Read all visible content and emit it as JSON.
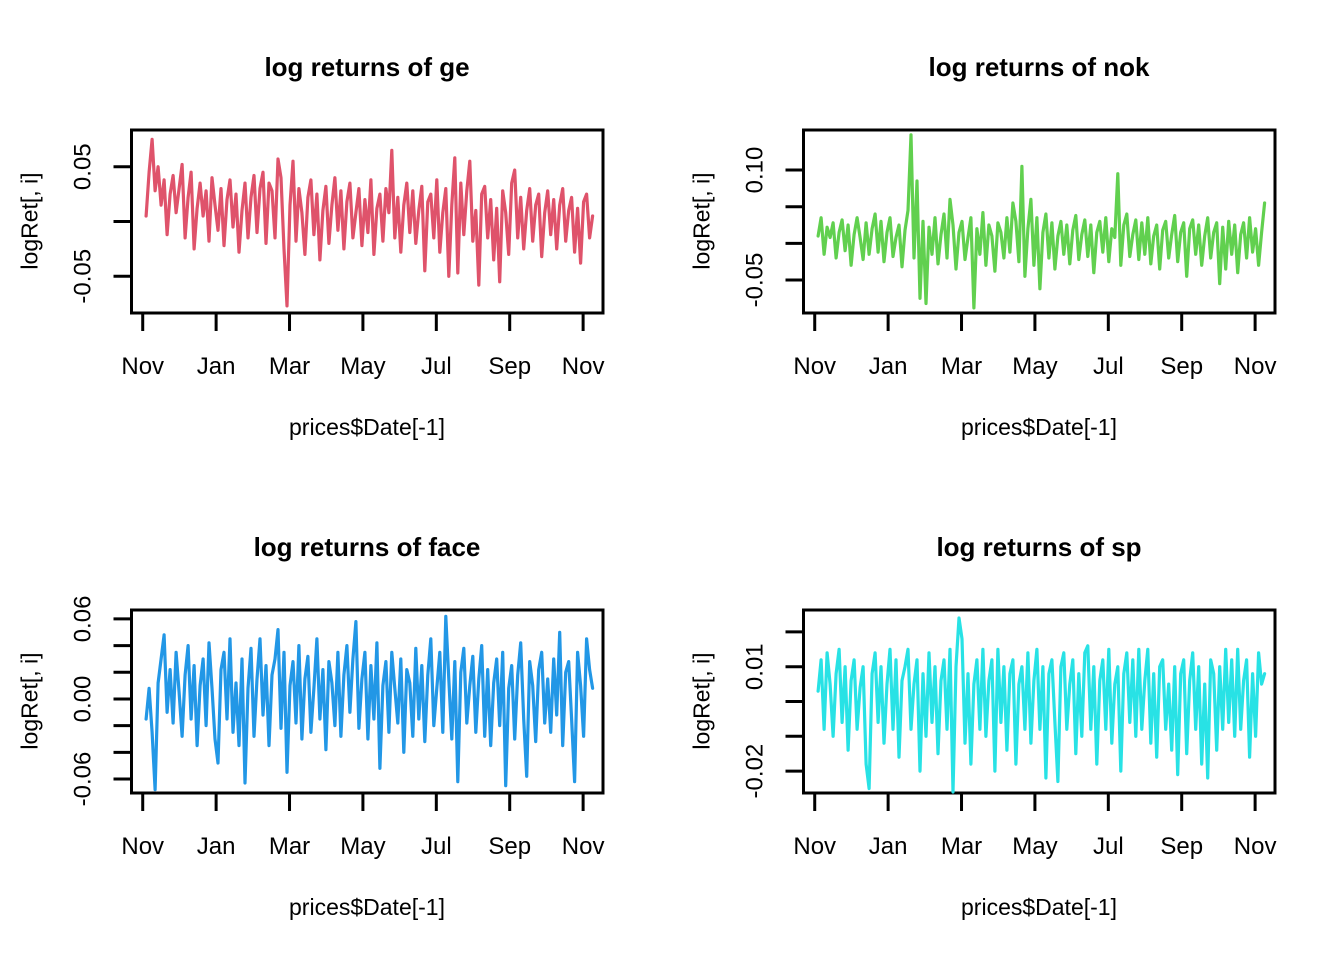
{
  "figure": {
    "background": "#ffffff",
    "description": "2x2 grid of R base-graphics line plots of daily log returns",
    "axis_color": "#000000"
  },
  "chart_data": [
    {
      "type": "line",
      "title": "log returns of ge",
      "xlabel": "prices$Date[-1]",
      "ylabel": "logRet[, i]",
      "series_name": "ge",
      "color": "#DF536B",
      "x_tick_labels": [
        "Nov",
        "Jan",
        "Mar",
        "May",
        "Jul",
        "Sep",
        "Nov"
      ],
      "y_ticks": [
        {
          "value": 0.05,
          "label": "0.05"
        },
        {
          "value": 0.0,
          "label": ""
        },
        {
          "value": -0.05,
          "label": "-0.05"
        }
      ],
      "ylim": [
        -0.0835,
        0.0835
      ],
      "value_scale": 0.001,
      "values_x1000": [
        5,
        45,
        75,
        28,
        50,
        15,
        38,
        -12,
        25,
        42,
        8,
        30,
        52,
        -15,
        22,
        45,
        -25,
        12,
        35,
        5,
        28,
        -18,
        40,
        15,
        -8,
        30,
        -22,
        20,
        38,
        -5,
        25,
        -28,
        10,
        35,
        -15,
        22,
        42,
        -10,
        30,
        45,
        -20,
        35,
        28,
        -15,
        57,
        40,
        -25,
        -77,
        15,
        55,
        -18,
        30,
        8,
        -30,
        22,
        38,
        -12,
        25,
        -35,
        10,
        32,
        -20,
        15,
        40,
        -8,
        28,
        -25,
        18,
        35,
        -15,
        8,
        30,
        -22,
        20,
        -10,
        38,
        -30,
        12,
        25,
        -18,
        30,
        8,
        65,
        -15,
        22,
        -28,
        15,
        35,
        -10,
        28,
        -20,
        10,
        32,
        -45,
        18,
        25,
        -15,
        38,
        -28,
        8,
        30,
        -50,
        15,
        58,
        -47,
        35,
        -12,
        28,
        55,
        -18,
        10,
        -58,
        25,
        32,
        -15,
        20,
        -35,
        12,
        -55,
        28,
        8,
        -30,
        35,
        47,
        -15,
        22,
        -25,
        10,
        30,
        -18,
        15,
        25,
        -32,
        8,
        28,
        -12,
        20,
        -25,
        15,
        30,
        -18,
        10,
        22,
        -28,
        12,
        -38,
        18,
        25,
        -15,
        5
      ]
    },
    {
      "type": "line",
      "title": "log returns of nok",
      "xlabel": "prices$Date[-1]",
      "ylabel": "logRet[, i]",
      "series_name": "nok",
      "color": "#61D04F",
      "x_tick_labels": [
        "Nov",
        "Jan",
        "Mar",
        "May",
        "Jul",
        "Sep",
        "Nov"
      ],
      "y_ticks": [
        {
          "value": 0.1,
          "label": "0.10"
        },
        {
          "value": 0.05,
          "label": ""
        },
        {
          "value": 0.0,
          "label": ""
        },
        {
          "value": -0.05,
          "label": "-0.05"
        }
      ],
      "ylim": [
        -0.095,
        0.1546
      ],
      "value_scale": 0.001,
      "values_x1000": [
        10,
        35,
        -15,
        22,
        8,
        28,
        -20,
        15,
        32,
        -10,
        25,
        -30,
        12,
        35,
        8,
        -22,
        28,
        -15,
        20,
        40,
        -12,
        30,
        -25,
        15,
        35,
        -18,
        8,
        25,
        -32,
        18,
        45,
        148,
        -20,
        85,
        -75,
        30,
        -82,
        22,
        -15,
        35,
        -28,
        12,
        40,
        -20,
        60,
        25,
        -35,
        15,
        30,
        -22,
        8,
        35,
        -88,
        20,
        -15,
        42,
        -30,
        25,
        10,
        -38,
        28,
        15,
        -20,
        35,
        -12,
        55,
        30,
        -25,
        105,
        -45,
        20,
        60,
        -30,
        35,
        -62,
        15,
        40,
        -20,
        28,
        -35,
        10,
        30,
        -15,
        25,
        -28,
        18,
        38,
        -22,
        12,
        32,
        -18,
        25,
        -40,
        15,
        30,
        -12,
        35,
        -25,
        20,
        8,
        95,
        -30,
        25,
        40,
        -18,
        12,
        32,
        -22,
        28,
        -15,
        35,
        -28,
        10,
        25,
        -35,
        18,
        30,
        -20,
        12,
        38,
        -25,
        15,
        28,
        -45,
        20,
        32,
        -15,
        25,
        -30,
        10,
        35,
        -20,
        15,
        28,
        -55,
        22,
        -35,
        30,
        -15,
        25,
        -40,
        12,
        28,
        -20,
        35,
        -12,
        20,
        -30,
        15,
        55
      ]
    },
    {
      "type": "line",
      "title": "log returns of face",
      "xlabel": "prices$Date[-1]",
      "ylabel": "logRet[, i]",
      "series_name": "face",
      "color": "#2297E6",
      "x_tick_labels": [
        "Nov",
        "Jan",
        "Mar",
        "May",
        "Jul",
        "Sep",
        "Nov"
      ],
      "y_ticks": [
        {
          "value": 0.06,
          "label": "0.06"
        },
        {
          "value": 0.04,
          "label": ""
        },
        {
          "value": 0.02,
          "label": ""
        },
        {
          "value": 0.0,
          "label": "0.00"
        },
        {
          "value": -0.02,
          "label": ""
        },
        {
          "value": -0.04,
          "label": ""
        },
        {
          "value": -0.06,
          "label": "-0.06"
        }
      ],
      "ylim": [
        -0.0705,
        0.0667
      ],
      "value_scale": 0.001,
      "values_x1000": [
        -15,
        8,
        -25,
        -68,
        12,
        30,
        48,
        -10,
        22,
        -18,
        35,
        5,
        -28,
        18,
        40,
        -15,
        25,
        -35,
        10,
        30,
        -20,
        42,
        8,
        -30,
        -48,
        22,
        35,
        -15,
        45,
        -25,
        12,
        -35,
        30,
        -63,
        8,
        38,
        -28,
        15,
        45,
        -12,
        25,
        -35,
        18,
        30,
        52,
        -22,
        35,
        -55,
        10,
        28,
        -18,
        40,
        -30,
        15,
        32,
        -25,
        8,
        45,
        -15,
        22,
        -38,
        28,
        12,
        -20,
        35,
        -28,
        18,
        40,
        -10,
        30,
        58,
        -22,
        15,
        35,
        -30,
        25,
        -15,
        42,
        -52,
        10,
        28,
        -25,
        35,
        8,
        -18,
        30,
        -40,
        22,
        12,
        -28,
        38,
        -15,
        25,
        -32,
        18,
        45,
        -20,
        8,
        35,
        -25,
        62,
        15,
        -30,
        28,
        -62,
        20,
        38,
        -18,
        10,
        32,
        -25,
        15,
        40,
        -28,
        22,
        -35,
        12,
        30,
        -20,
        35,
        -65,
        8,
        25,
        -30,
        18,
        42,
        -15,
        -58,
        28,
        10,
        -32,
        22,
        35,
        -18,
        15,
        -25,
        30,
        -12,
        50,
        -35,
        20,
        28,
        -15,
        -62,
        35,
        10,
        -28,
        45,
        22,
        8
      ]
    },
    {
      "type": "line",
      "title": "log returns of sp",
      "xlabel": "prices$Date[-1]",
      "ylabel": "logRet[, i]",
      "series_name": "sp",
      "color": "#28E2E5",
      "x_tick_labels": [
        "Nov",
        "Jan",
        "Mar",
        "May",
        "Jul",
        "Sep",
        "Nov"
      ],
      "y_ticks": [
        {
          "value": 0.02,
          "label": ""
        },
        {
          "value": 0.01,
          "label": "0.01"
        },
        {
          "value": 0.0,
          "label": ""
        },
        {
          "value": -0.01,
          "label": ""
        },
        {
          "value": -0.02,
          "label": "-0.02"
        }
      ],
      "ylim": [
        -0.0263,
        0.0263
      ],
      "value_scale": 0.001,
      "values_x1000": [
        3,
        12,
        -8,
        14,
        5,
        -10,
        8,
        15,
        -6,
        10,
        -14,
        6,
        12,
        -8,
        4,
        10,
        -18,
        -25,
        8,
        14,
        -6,
        10,
        -12,
        5,
        15,
        -8,
        12,
        -16,
        6,
        10,
        15,
        -8,
        5,
        12,
        -20,
        8,
        -10,
        14,
        -6,
        10,
        -15,
        6,
        12,
        -8,
        15,
        -26,
        10,
        24,
        18,
        -12,
        8,
        -18,
        5,
        12,
        -8,
        15,
        -10,
        6,
        12,
        -20,
        15,
        -6,
        10,
        -14,
        8,
        12,
        -18,
        5,
        10,
        -8,
        14,
        -12,
        6,
        15,
        -8,
        10,
        -22,
        8,
        12,
        -6,
        -23,
        10,
        14,
        -8,
        5,
        12,
        -15,
        8,
        -10,
        14,
        16,
        -8,
        10,
        -18,
        6,
        12,
        -8,
        15,
        -12,
        5,
        10,
        -20,
        8,
        14,
        -6,
        12,
        -10,
        15,
        -8,
        6,
        15,
        -12,
        8,
        -16,
        10,
        12,
        -8,
        5,
        -14,
        10,
        -21,
        8,
        12,
        -15,
        6,
        14,
        -8,
        10,
        -18,
        5,
        -22,
        12,
        8,
        -14,
        10,
        -8,
        15,
        -6,
        12,
        -10,
        15,
        -8,
        6,
        12,
        -16,
        8,
        -10,
        14,
        5,
        8
      ]
    }
  ]
}
